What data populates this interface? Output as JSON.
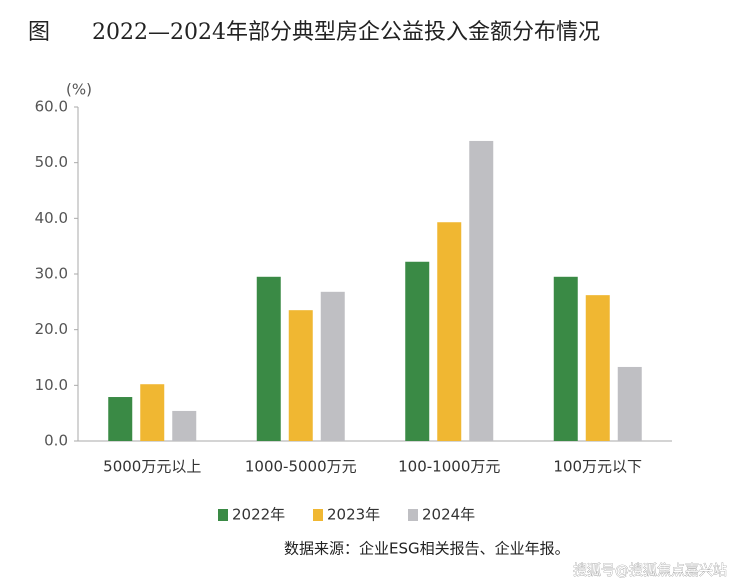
{
  "chart_data": {
    "type": "bar",
    "figure_label": "图",
    "title": "2022—2024年部分典型房企公益投入金额分布情况",
    "y_label": "(%)",
    "categories": [
      "5000万元以上",
      "1000-5000万元",
      "100-1000万元",
      "100万元以下"
    ],
    "series": [
      {
        "name": "2022年",
        "color": "#3a8a45",
        "values": [
          7.9,
          29.5,
          32.2,
          29.5
        ]
      },
      {
        "name": "2023年",
        "color": "#f0b732",
        "values": [
          10.2,
          23.5,
          39.3,
          26.2
        ]
      },
      {
        "name": "2024年",
        "color": "#bfbfc3",
        "values": [
          5.4,
          26.8,
          53.9,
          13.3
        ]
      }
    ],
    "ylim": [
      0,
      60
    ],
    "yticks": [
      {
        "value": 0,
        "label": "0.0"
      },
      {
        "value": 10,
        "label": "10.0"
      },
      {
        "value": 20,
        "label": "20.0"
      },
      {
        "value": 30,
        "label": "30.0"
      },
      {
        "value": 40,
        "label": "40.0"
      },
      {
        "value": 50,
        "label": "50.0"
      },
      {
        "value": 60,
        "label": "60.0"
      }
    ],
    "grid": false,
    "source": "数据来源：企业ESG相关报告、企业年报。",
    "watermark": "搜狐号@搜狐焦点嘉兴站"
  }
}
